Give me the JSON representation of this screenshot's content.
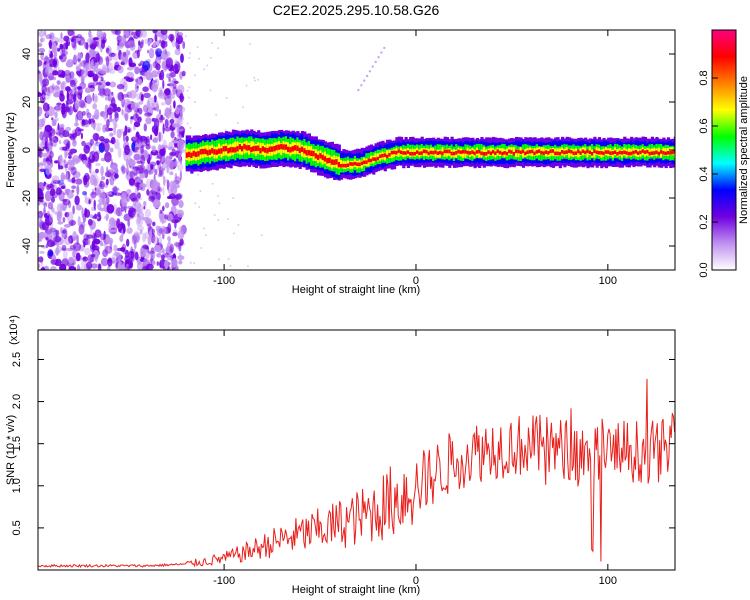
{
  "title": "C2E2.2025.295.10.58.G26",
  "chart_data": [
    {
      "type": "heatmap",
      "name": "spectrogram",
      "xlabel": "Height of straight line (km)",
      "ylabel": "Frequency (Hz)",
      "xlim": [
        -197,
        135
      ],
      "ylim": [
        -50,
        50
      ],
      "xticks": [
        -100,
        0,
        100
      ],
      "xtick_labels": [
        "-100",
        "0",
        "100"
      ],
      "yticks": [
        -40,
        -20,
        0,
        20,
        40
      ],
      "ytick_labels": [
        "-40",
        "-20",
        "0",
        "20",
        "40"
      ],
      "noise_region_x": [
        -197,
        -121
      ],
      "signal_trace": {
        "x": [
          -120,
          -110,
          -100,
          -90,
          -80,
          -70,
          -60,
          -50,
          -40,
          -30,
          -20,
          -10,
          0,
          20,
          40,
          60,
          80,
          100,
          120,
          135
        ],
        "frequency": [
          -2,
          -1,
          0,
          1,
          0,
          1,
          0,
          -3,
          -6,
          -6,
          -3,
          -1,
          -1,
          -1,
          -1,
          -1,
          -1,
          -1,
          -1,
          -1
        ]
      },
      "colorbar": {
        "label": "Normalized spectral amplitude",
        "range": [
          0,
          1
        ],
        "ticks": [
          0.0,
          0.2,
          0.4,
          0.6,
          0.8
        ],
        "tick_labels": [
          "0.0",
          "0.2",
          "0.4",
          "0.6",
          "0.8"
        ],
        "colors": [
          "#ffffff",
          "#c090f0",
          "#7000e0",
          "#0000ff",
          "#00ffff",
          "#00ff00",
          "#ffff00",
          "#ff8000",
          "#ff0000",
          "#ff0080"
        ]
      }
    },
    {
      "type": "line",
      "name": "snr",
      "xlabel": "Height of straight line (km)",
      "ylabel": "SNR (10 * v/v)",
      "exponent_label": "(x10⁴)",
      "xlim": [
        -197,
        135
      ],
      "ylim": [
        0,
        2.85
      ],
      "xticks": [
        -100,
        0,
        100
      ],
      "xtick_labels": [
        "-100",
        "0",
        "100"
      ],
      "yticks": [
        0.5,
        1.0,
        1.5,
        2.0,
        2.5
      ],
      "ytick_labels": [
        "0.5",
        "1.0",
        "1.5",
        "2.0",
        "2.5"
      ],
      "series_color": "#e8201c",
      "envelope_x": [
        -197,
        -170,
        -140,
        -120,
        -110,
        -100,
        -90,
        -80,
        -70,
        -60,
        -50,
        -40,
        -30,
        -20,
        -10,
        0,
        10,
        20,
        30,
        40,
        50,
        60,
        70,
        80,
        90,
        95,
        100,
        110,
        120,
        130,
        135
      ],
      "envelope_y": [
        0.05,
        0.05,
        0.05,
        0.07,
        0.1,
        0.14,
        0.2,
        0.28,
        0.36,
        0.42,
        0.48,
        0.55,
        0.62,
        0.72,
        0.85,
        1.0,
        1.15,
        1.3,
        1.4,
        1.45,
        1.48,
        1.48,
        1.45,
        1.42,
        1.4,
        1.38,
        1.4,
        1.42,
        1.4,
        1.42,
        1.45
      ]
    }
  ]
}
